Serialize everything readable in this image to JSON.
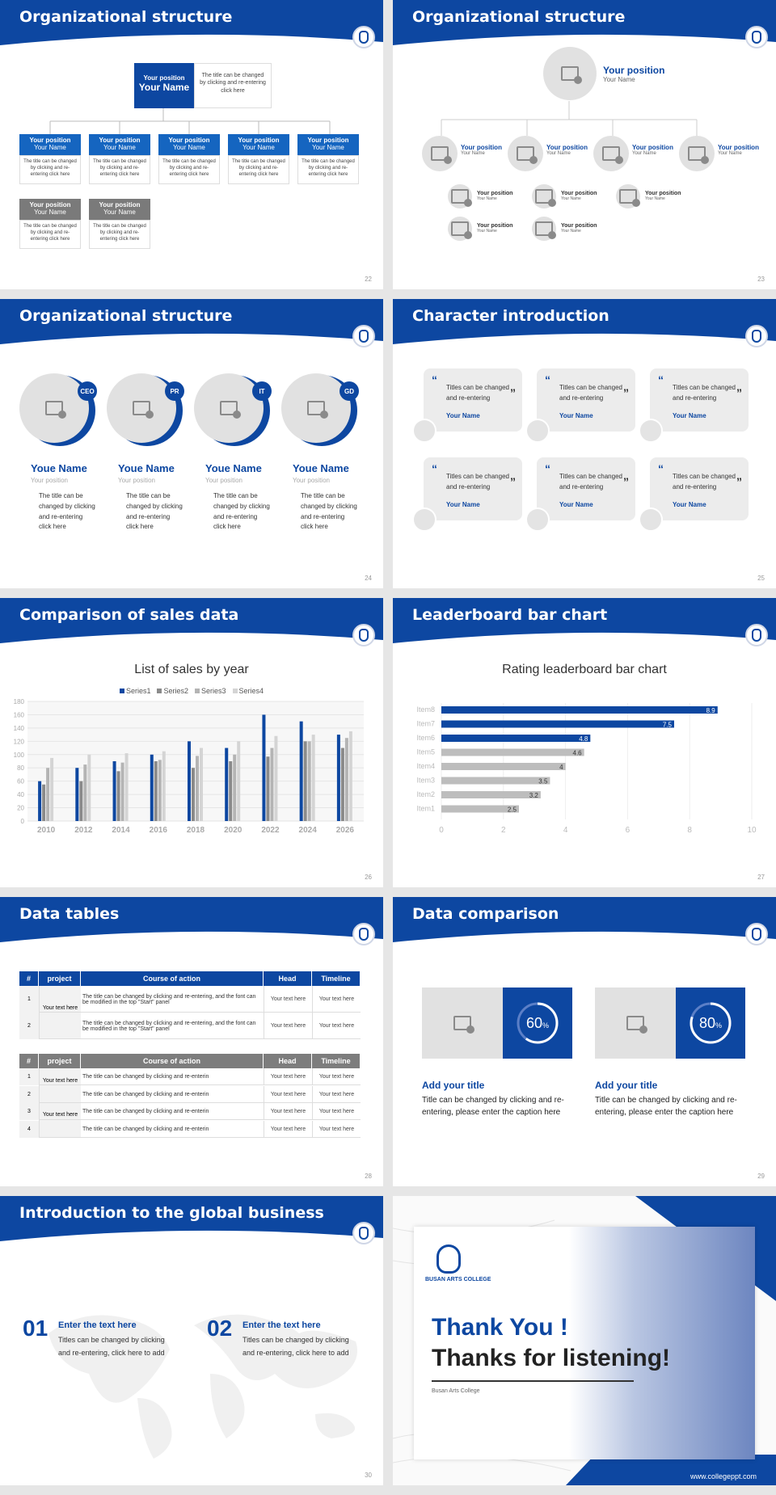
{
  "colors": {
    "brand": "#0d47a1",
    "gray": "#8a8a8a",
    "light": "#e1e1e1"
  },
  "s22": {
    "title": "Organizational structure",
    "num": "22",
    "top": {
      "position": "Your position",
      "name": "Your Name",
      "desc": "The title can be changed by clicking and re-entering click here"
    },
    "row1": [
      {
        "position": "Your position",
        "name": "Your Name",
        "desc": "The title can be changed by clicking and re-entering click here"
      },
      {
        "position": "Your position",
        "name": "Your Name",
        "desc": "The title can be changed by clicking and re-entering click here"
      },
      {
        "position": "Your position",
        "name": "Your Name",
        "desc": "The title can be changed by clicking and re-entering click here"
      },
      {
        "position": "Your position",
        "name": "Your Name",
        "desc": "The title can be changed by clicking and re-entering click here"
      },
      {
        "position": "Your position",
        "name": "Your Name",
        "desc": "The title can be changed by clicking and re-entering click here"
      }
    ],
    "row2": [
      {
        "position": "Your position",
        "name": "Your Name",
        "desc": "The title can be changed by clicking and re-entering click here"
      },
      {
        "position": "Your position",
        "name": "Your Name",
        "desc": "The title can be changed by clicking and re-entering click here"
      }
    ]
  },
  "s23": {
    "title": "Organizational structure",
    "num": "23",
    "top": {
      "position": "Your position",
      "name": "Your Name"
    },
    "mid": [
      {
        "position": "Your position",
        "name": "Your Name"
      },
      {
        "position": "Your position",
        "name": "Your Name"
      },
      {
        "position": "Your position",
        "name": "Your Name"
      },
      {
        "position": "Your position",
        "name": "Your Name"
      }
    ],
    "sub": [
      {
        "position": "Your position",
        "name": "Your Name"
      },
      {
        "position": "Your position",
        "name": "Your Name"
      },
      {
        "position": "Your position",
        "name": "Your Name"
      },
      {
        "position": "Your position",
        "name": "Your Name"
      },
      {
        "position": "Your position",
        "name": "Your Name"
      }
    ]
  },
  "s24": {
    "title": "Organizational structure",
    "num": "24",
    "people": [
      {
        "badge": "CEO",
        "name": "Youe Name",
        "position": "Your position",
        "desc": "The title can be changed by clicking and re-entering click here"
      },
      {
        "badge": "PR",
        "name": "Youe Name",
        "position": "Your position",
        "desc": "The title can be changed by clicking and re-entering click here"
      },
      {
        "badge": "IT",
        "name": "Youe Name",
        "position": "Your position",
        "desc": "The title can be changed by clicking and re-entering click here"
      },
      {
        "badge": "GD",
        "name": "Youe Name",
        "position": "Your position",
        "desc": "The title can be changed by clicking and re-entering click here"
      }
    ]
  },
  "s25": {
    "title": "Character introduction",
    "num": "25",
    "cards": [
      {
        "text": "Titles can be changed and re-entering",
        "name": "Your Name"
      },
      {
        "text": "Titles can be changed and re-entering",
        "name": "Your Name"
      },
      {
        "text": "Titles can be changed and re-entering",
        "name": "Your Name"
      },
      {
        "text": "Titles can be changed and re-entering",
        "name": "Your Name"
      },
      {
        "text": "Titles can be changed and re-entering",
        "name": "Your Name"
      },
      {
        "text": "Titles can be changed and re-entering",
        "name": "Your Name"
      }
    ]
  },
  "s26": {
    "title": "Comparison of sales data",
    "num": "26"
  },
  "s27": {
    "title": "Leaderboard bar chart",
    "num": "27"
  },
  "chart_data": [
    {
      "type": "bar",
      "title": "List of sales by year",
      "categories": [
        "2010",
        "2012",
        "2014",
        "2016",
        "2018",
        "2020",
        "2022",
        "2024",
        "2026"
      ],
      "ylim": [
        0,
        180
      ],
      "yticks": [
        0,
        20,
        40,
        60,
        80,
        100,
        120,
        140,
        160,
        180
      ],
      "series": [
        {
          "name": "Series1",
          "color": "#0d47a1",
          "values": [
            60,
            80,
            90,
            100,
            120,
            110,
            160,
            150,
            130
          ]
        },
        {
          "name": "Series2",
          "color": "#8a8a8a",
          "values": [
            55,
            60,
            75,
            90,
            80,
            90,
            97,
            120,
            110
          ]
        },
        {
          "name": "Series3",
          "color": "#b4b4b4",
          "values": [
            80,
            85,
            88,
            92,
            98,
            100,
            110,
            120,
            125
          ]
        },
        {
          "name": "Series4",
          "color": "#d4d4d4",
          "values": [
            95,
            100,
            102,
            105,
            110,
            120,
            128,
            130,
            135
          ]
        }
      ]
    },
    {
      "type": "bar",
      "orientation": "horizontal",
      "title": "Rating leaderboard bar chart",
      "categories": [
        "Item8",
        "Item7",
        "Item6",
        "Item5",
        "Item4",
        "Item3",
        "Item2",
        "Item1"
      ],
      "values": [
        8.9,
        7.5,
        4.8,
        4.6,
        4,
        3.5,
        3.2,
        2.5
      ],
      "labels": [
        "8.9",
        "7.5",
        "4.8",
        "4.6",
        "4",
        "3.5",
        "3.2",
        "2.5"
      ],
      "xlim": [
        0,
        10
      ],
      "xticks": [
        "0",
        "2",
        "4",
        "6",
        "8",
        "10"
      ]
    }
  ],
  "s28": {
    "title": "Data tables",
    "num": "28",
    "headers": [
      "#",
      "project",
      "Course of action",
      "Head",
      "Timeline"
    ],
    "t1": {
      "project": "Your text here",
      "rows": [
        {
          "n": "1",
          "action": "The title can be changed by clicking and re-entering, and the font can be modified in the top \"Start\" panel",
          "head": "Your text here",
          "time": "Your text here"
        },
        {
          "n": "2",
          "action": "The title can be changed by clicking and re-entering, and the font can be modified in the top \"Start\" panel",
          "head": "Your text here",
          "time": "Your text here"
        }
      ]
    },
    "t2": {
      "project": "Your text here",
      "project2": "Your text here",
      "rows": [
        {
          "n": "1",
          "action": "The title can be changed by clicking and re-enterin",
          "head": "Your text here",
          "time": "Your text here"
        },
        {
          "n": "2",
          "action": "The title can be changed by clicking and re-enterin",
          "head": "Your text here",
          "time": "Your text here"
        },
        {
          "n": "3",
          "action": "The title can be changed by clicking and re-enterin",
          "head": "Your text here",
          "time": "Your text here"
        },
        {
          "n": "4",
          "action": "The title can be changed by clicking and re-enterin",
          "head": "Your text here",
          "time": "Your text here"
        }
      ]
    }
  },
  "s29": {
    "title": "Data comparison",
    "num": "29",
    "items": [
      {
        "pct": "60",
        "pct_value": 0.6,
        "sym": "%",
        "title": "Add your title",
        "desc": "Title can be changed by clicking and re-entering, please enter the caption here"
      },
      {
        "pct": "80",
        "pct_value": 0.8,
        "sym": "%",
        "title": "Add your title",
        "desc": "Title can be changed by clicking and re-entering, please enter the caption here"
      }
    ]
  },
  "s30": {
    "title": "Introduction to the global business",
    "num": "30",
    "items": [
      {
        "n": "01",
        "title": "Enter the text here",
        "desc": "Titles can be changed by clicking and re-entering, click here to add"
      },
      {
        "n": "02",
        "title": "Enter the text here",
        "desc": "Titles can be changed by clicking and re-entering, click here to add"
      }
    ]
  },
  "s31": {
    "logo_text": "BUSAN ARTS COLLEGE",
    "line1": "Thank You !",
    "line2": "Thanks for listening!",
    "college": "Busan Arts College",
    "site": "www.collegeppt.com"
  }
}
